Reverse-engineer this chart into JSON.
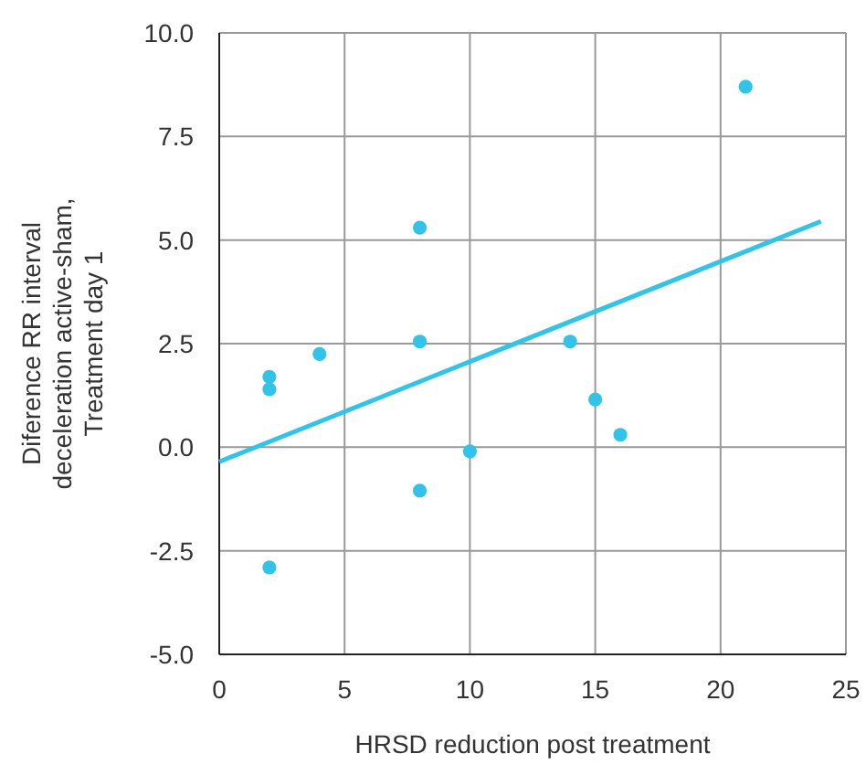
{
  "chart_data": {
    "type": "scatter",
    "xlabel": "HRSD reduction post treatment",
    "ylabel": "Diference RR interval\ndeceleration active-sham,\nTreatment day 1",
    "xlim": [
      0,
      25
    ],
    "xticks": [
      0,
      5,
      10,
      15,
      20,
      25
    ],
    "ylim": [
      -5,
      10
    ],
    "yticks": [
      {
        "value": -5,
        "label": "-5.0"
      },
      {
        "value": -2.5,
        "label": "-2.5"
      },
      {
        "value": 0,
        "label": "0.0"
      },
      {
        "value": 2.5,
        "label": "2.5"
      },
      {
        "value": 5,
        "label": "5.0"
      },
      {
        "value": 7.5,
        "label": "7.5"
      },
      {
        "value": 10,
        "label": "10.0"
      }
    ],
    "grid": true,
    "series": [
      {
        "marker": "circle",
        "color": "#33c3e8",
        "x": [
          2,
          2,
          2,
          4,
          8,
          8,
          8,
          10,
          14,
          15,
          16,
          21
        ],
        "values": [
          1.7,
          1.4,
          -2.9,
          2.25,
          5.3,
          2.55,
          -1.05,
          -0.1,
          2.55,
          1.15,
          0.3,
          8.7
        ]
      },
      {
        "type": "line",
        "color": "#33c3e8",
        "x": [
          0,
          24
        ],
        "values": [
          -0.35,
          5.45
        ]
      }
    ]
  }
}
